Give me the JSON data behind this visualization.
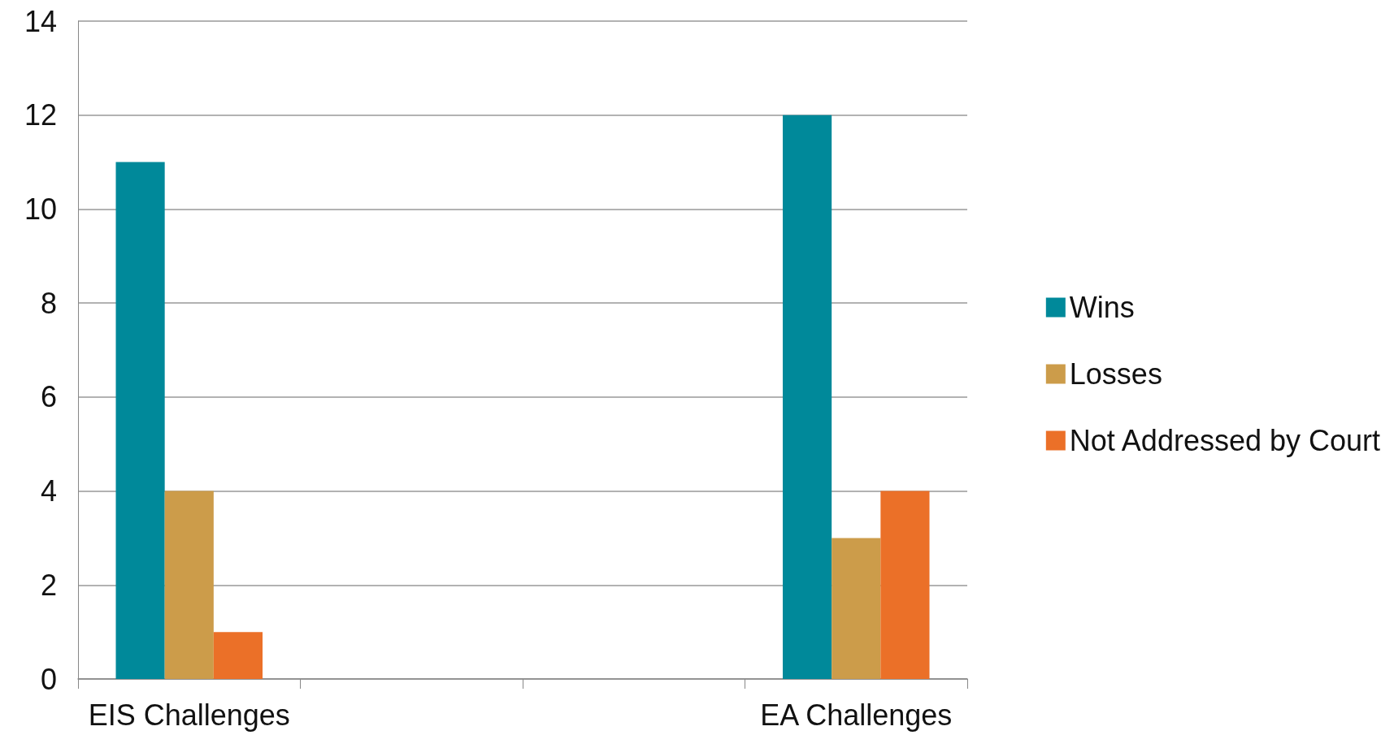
{
  "chart_data": {
    "type": "bar",
    "categories": [
      "EIS Challenges",
      null,
      null,
      "EA Challenges"
    ],
    "series": [
      {
        "name": "Wins",
        "color": "#00899a",
        "values": [
          11,
          null,
          null,
          12
        ]
      },
      {
        "name": "Losses",
        "color": "#cc9c4a",
        "values": [
          4,
          null,
          null,
          3
        ]
      },
      {
        "name": "Not Addressed by Court",
        "color": "#eb7028",
        "values": [
          1,
          null,
          null,
          4
        ]
      }
    ],
    "ylim": [
      0,
      14
    ],
    "yticks": [
      0,
      2,
      4,
      6,
      8,
      10,
      12,
      14
    ],
    "grid": "y",
    "legend": "right"
  }
}
